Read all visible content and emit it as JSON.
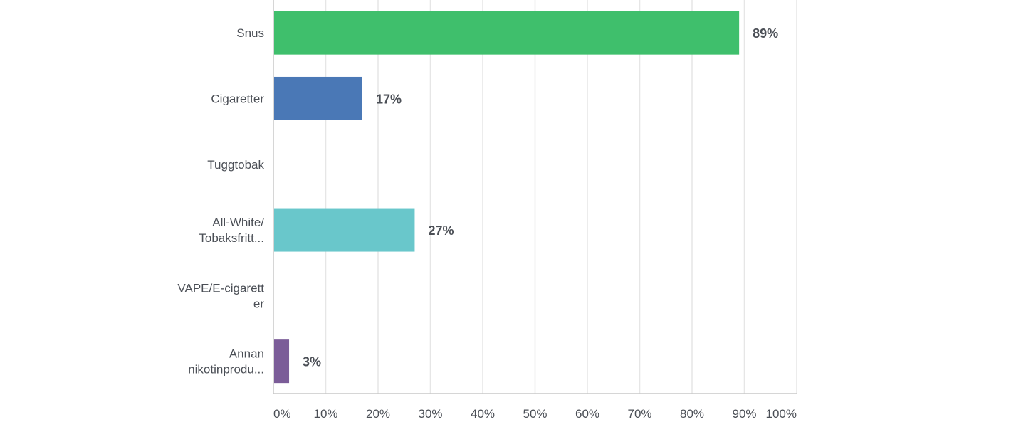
{
  "chart_data": {
    "type": "bar",
    "orientation": "horizontal",
    "categories": [
      [
        "Snus"
      ],
      [
        "Cigaretter"
      ],
      [
        "Tuggtobak"
      ],
      [
        "All-White/",
        "Tobaksfritt..."
      ],
      [
        "VAPE/E-cigarett",
        "er"
      ],
      [
        "Annan",
        "nikotinprodu..."
      ]
    ],
    "values": [
      89,
      17,
      0,
      27,
      0,
      3
    ],
    "value_labels": [
      "89%",
      "17%",
      "",
      "27%",
      "",
      "3%"
    ],
    "colors": [
      "#3fbf6c",
      "#4a78b6",
      "#e3a93a",
      "#69c7cb",
      "#e06a58",
      "#7b5c98"
    ],
    "xlim": [
      0,
      100
    ],
    "xticks": [
      "0%",
      "10%",
      "20%",
      "30%",
      "40%",
      "50%",
      "60%",
      "70%",
      "80%",
      "90%",
      "100%"
    ],
    "grid": true,
    "title": "",
    "xlabel": "",
    "ylabel": ""
  }
}
